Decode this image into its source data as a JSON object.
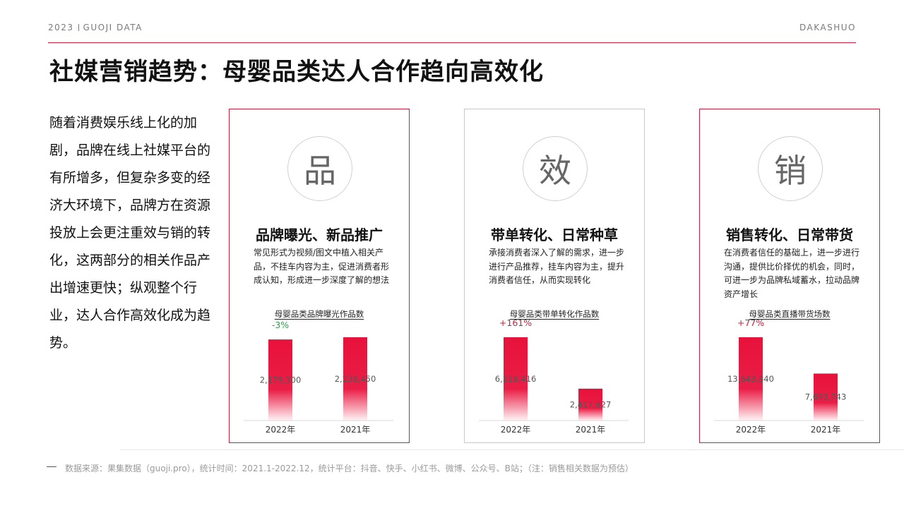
{
  "header": {
    "left_year": "2023",
    "left_brand": "GUOJI DATA",
    "right_brand": "DAKASHUO"
  },
  "title": "社媒营销趋势：母婴品类达人合作趋向高效化",
  "intro": "随着消费娱乐线上化的加剧，品牌在线上社媒平台的有所增多，但复杂多变的经济大环境下，品牌方在资源投放上会更注重效与销的转化，这两部分的相关作品产出增速更快；纵观整个行业，达人合作高效化成为趋势。",
  "colors": {
    "accent": "#c9203d",
    "bar": "#e8123c",
    "positive": "#c9203d",
    "negative": "#2e9e48"
  },
  "cards": [
    {
      "char": "品",
      "title": "品牌曝光、新品推广",
      "desc": "常见形式为视频/图文中植入相关产品，不挂车内容为主，促进消费者形成认知，形成进一步深度了解的想法",
      "border": "red"
    },
    {
      "char": "效",
      "title": "带单转化、日常种草",
      "desc": "承接消费者深入了解的需求，进一步进行产品推荐，挂车内容为主，提升消费者信任，从而实现转化",
      "border": "gray"
    },
    {
      "char": "销",
      "title": "销售转化、日常带货",
      "desc": "在消费者信任的基础上，进一步进行沟通，提供比价择优的机会，同时，可进一步为品牌私域蓄水，拉动品牌资产增长",
      "border": "red"
    }
  ],
  "chart_data": [
    {
      "type": "bar",
      "title": "母婴品类品牌曝光作品数",
      "categories": [
        "2022年",
        "2021年"
      ],
      "values": [
        2179300,
        2238450
      ],
      "value_labels": [
        "2,179,300",
        "2,238,450"
      ],
      "change_label": "-3%",
      "change_direction": "negative"
    },
    {
      "type": "bar",
      "title": "母婴品类带单转化作品数",
      "categories": [
        "2022年",
        "2021年"
      ],
      "values": [
        6318416,
        2417627
      ],
      "value_labels": [
        "6,318,416",
        "2,417,627"
      ],
      "change_label": "+161%",
      "change_direction": "positive"
    },
    {
      "type": "bar",
      "title": "母婴品类直播带货场数",
      "categories": [
        "2022年",
        "2021年"
      ],
      "values": [
        13643840,
        7693743
      ],
      "value_labels": [
        "13,643,840",
        "7,693,743"
      ],
      "change_label": "+77%",
      "change_direction": "positive"
    }
  ],
  "footer": {
    "source": "数据来源：果集数据（guoji.pro），统计时间：2021.1-2022.12，统计平台：抖音、快手、小红书、微博、公众号、B站；（注：销售相关数据为预估）"
  }
}
